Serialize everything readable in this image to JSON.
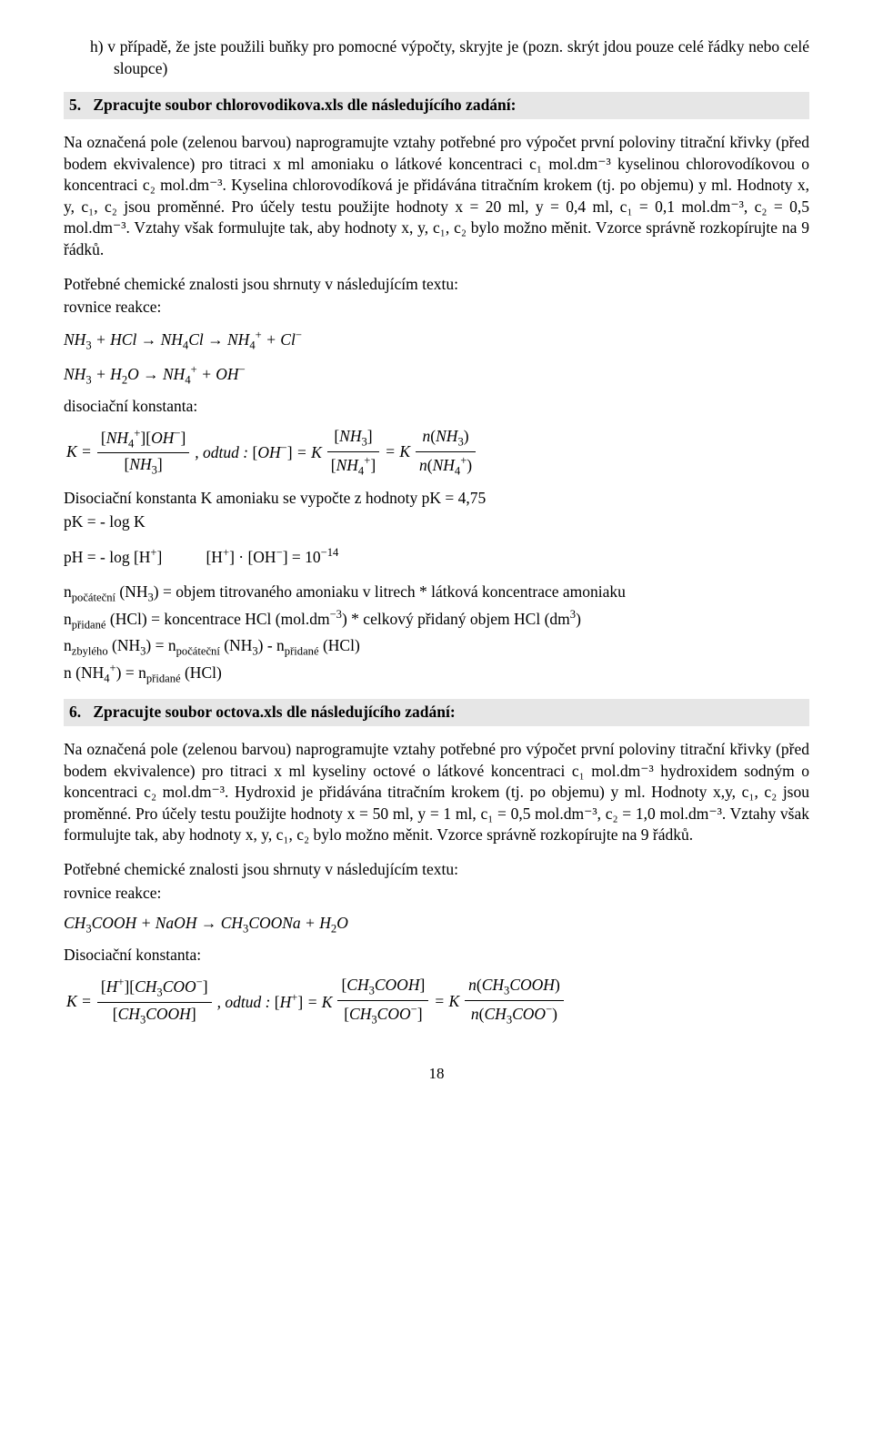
{
  "colors": {
    "background": "#ffffff",
    "text": "#000000",
    "heading_bg": "#e6e6e6"
  },
  "typography": {
    "font_family": "Times New Roman",
    "body_fontsize_pt": 13,
    "line_height": 1.35
  },
  "item_h": {
    "label": "h)",
    "text": "v případě, že jste použili buňky pro pomocné výpočty, skryjte je (pozn. skrýt jdou pouze celé řádky nebo celé sloupce)"
  },
  "section5": {
    "num": "5.",
    "title": "Zpracujte soubor chlorovodikova.xls dle následujícího zadání:",
    "p1": "Na označená pole (zelenou barvou) naprogramujte vztahy potřebné pro výpočet první poloviny titrační křivky (před bodem ekvivalence) pro titraci x ml amoniaku o látkové koncentraci c₁ mol.dm⁻³ kyselinou chlorovodíkovou o koncentraci c₂ mol.dm⁻³. Kyselina chlorovodíková je přidávána titračním krokem (tj. po objemu) y ml. Hodnoty x, y, c₁, c₂ jsou proměnné. Pro účely testu použijte hodnoty x = 20 ml, y = 0,4 ml, c₁ = 0,1 mol.dm⁻³, c₂ = 0,5 mol.dm⁻³. Vztahy však formulujte tak, aby hodnoty x, y, c₁, c₂ bylo možno měnit. Vzorce správně rozkopírujte na 9 řádků.",
    "p2a": "Potřebné chemické znalosti jsou shrnuty v následujícím textu:",
    "p2b": "rovnice reakce:",
    "disoc_label": "disociační konstanta:",
    "k_line1": "Disociační konstanta K amoniaku se vypočte z hodnoty pK = 4,75",
    "k_line2": "pK = - log K",
    "ph_left": "pH = - log [H⁺]",
    "ph_right": "[H⁺] · [OH⁻] = 10⁻¹⁴",
    "n1": "n_počáteční (NH₃) = objem titrovaného amoniaku v litrech * látková koncentrace amoniaku",
    "n2": "n_přidané (HCl) = koncentrace HCl (mol.dm⁻³) * celkový přidaný objem HCl (dm³)",
    "n3": "n_zbylého (NH₃) = n_počáteční (NH₃) - n_přidané (HCl)",
    "n4": "n (NH₄⁺) = n_přidané (HCl)"
  },
  "section6": {
    "num": "6.",
    "title": "Zpracujte soubor octova.xls dle následujícího zadání:",
    "p1": "Na označená pole (zelenou barvou) naprogramujte vztahy potřebné pro výpočet první poloviny titrační křivky (před bodem ekvivalence) pro titraci x ml kyseliny octové o látkové koncentraci c₁ mol.dm⁻³ hydroxidem sodným o koncentraci c₂ mol.dm⁻³. Hydroxid je přidávána titračním krokem (tj. po objemu) y ml. Hodnoty x,y, c₁, c₂ jsou proměnné. Pro účely testu použijte hodnoty x = 50 ml, y = 1 ml, c₁ = 0,5 mol.dm⁻³, c₂ = 1,0 mol.dm⁻³. Vztahy však formulujte tak, aby hodnoty x, y, c₁, c₂ bylo možno měnit. Vzorce správně rozkopírujte na 9 řádků.",
    "p2a": "Potřebné chemické znalosti jsou shrnuty v následujícím textu:",
    "p2b": "rovnice reakce:",
    "disoc_label": "Disociační konstanta:"
  },
  "pagenum": "18"
}
